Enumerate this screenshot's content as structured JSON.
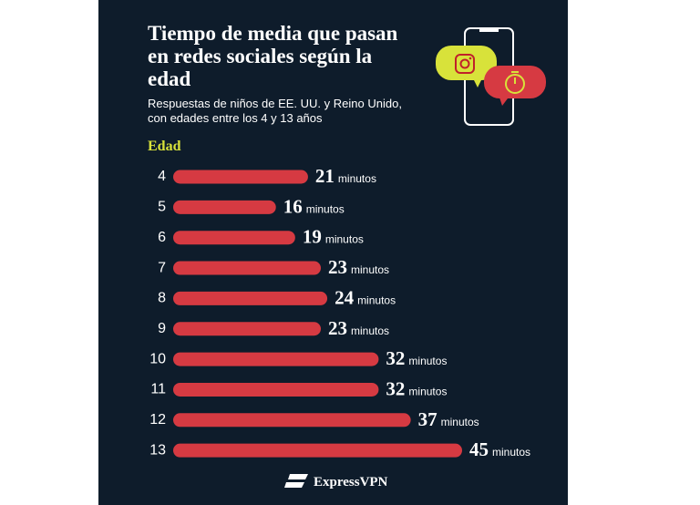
{
  "chart_data": {
    "type": "bar",
    "orientation": "horizontal",
    "title": "Tiempo de media que pasan en redes sociales según la edad",
    "subtitle": "Respuestas de niños de EE. UU. y Reino Unido, con edades entre los 4 y 13 años",
    "y_label": "Edad",
    "categories": [
      "4",
      "5",
      "6",
      "7",
      "8",
      "9",
      "10",
      "11",
      "12",
      "13"
    ],
    "values": [
      21,
      16,
      19,
      23,
      24,
      23,
      32,
      32,
      37,
      45
    ],
    "value_suffix": "minutos",
    "color": "#d63a42"
  },
  "brand": "ExpressVPN"
}
